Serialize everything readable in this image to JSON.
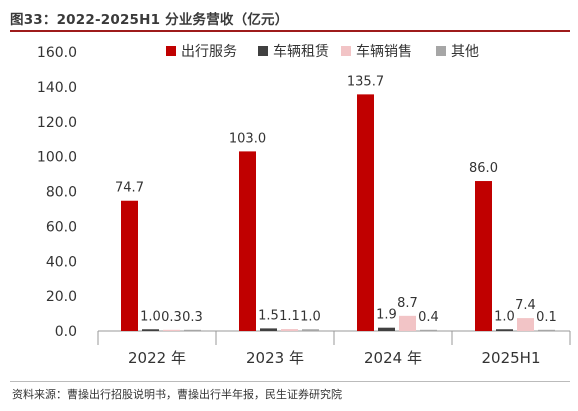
{
  "title": "图33：2022-2025H1 分业务营收（亿元）",
  "source": "资料来源：曹操出行招股说明书，曹操出行半年报，民生证券研究院",
  "colors": {
    "出行服务": "#c00000",
    "车辆租赁": "#404040",
    "车辆销售": "#f2c4c6",
    "其他": "#a6a6a6"
  },
  "chart_data": {
    "type": "bar",
    "categories": [
      "2022 年",
      "2023 年",
      "2024 年",
      "2025H1"
    ],
    "series": [
      {
        "name": "出行服务",
        "values": [
          74.7,
          103.0,
          135.7,
          86.0
        ],
        "labels": [
          "74.7",
          "103.0",
          "135.7",
          "86.0"
        ]
      },
      {
        "name": "车辆租赁",
        "values": [
          1.0,
          1.5,
          1.9,
          1.0
        ],
        "labels": [
          "1.0",
          "1.5",
          "1.9",
          "1.0"
        ]
      },
      {
        "name": "车辆销售",
        "values": [
          0.3,
          1.1,
          8.7,
          7.4
        ],
        "labels": [
          "0.3",
          "1.1",
          "8.7",
          "7.4"
        ]
      },
      {
        "name": "其他",
        "values": [
          0.3,
          1.0,
          0.4,
          0.1
        ],
        "labels": [
          "0.3",
          "1.0",
          "0.4",
          "0.1"
        ]
      }
    ],
    "y_ticks": [
      "0.0",
      "20.0",
      "40.0",
      "60.0",
      "80.0",
      "100.0",
      "120.0",
      "140.0",
      "160.0"
    ],
    "ylim": [
      0,
      160
    ],
    "legend": "top-center",
    "grid": false
  }
}
